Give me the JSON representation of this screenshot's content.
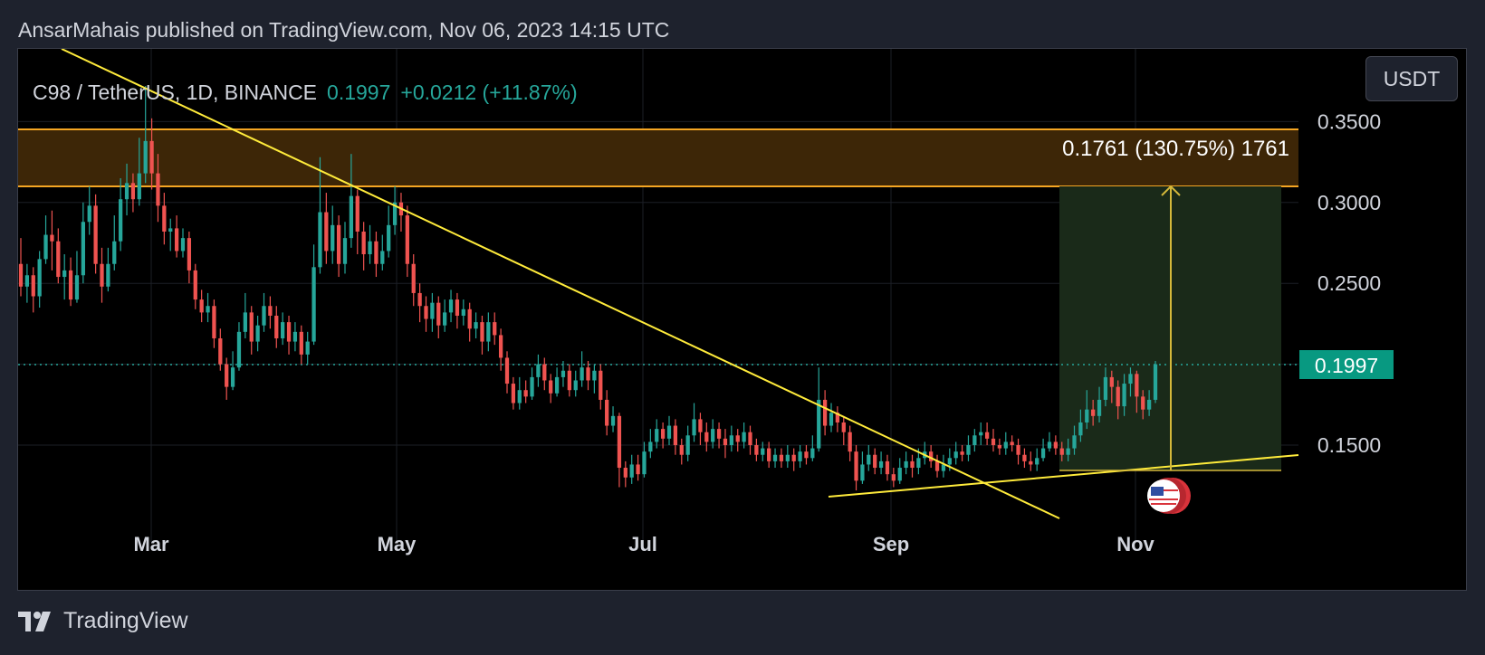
{
  "header": {
    "published_line": "AnsarMahais published on TradingView.com, Nov 06, 2023 14:15 UTC"
  },
  "legend": {
    "symbol": "C98 / TetherUS, 1D, BINANCE",
    "last": "0.1997",
    "change": "+0.0212 (+11.87%)"
  },
  "currency_button": "USDT",
  "footer": {
    "brand": "TradingView"
  },
  "colors": {
    "up": "#26a69a",
    "down": "#ef5350",
    "trendline": "#ffeb3b",
    "zone_fill": "#3d2607",
    "zone_border": "#f5a623",
    "target_fill": "#1a2a19",
    "price_label_bg": "#089981"
  },
  "chart_data": {
    "type": "candlestick",
    "title": "C98 / TetherUS, 1D, BINANCE",
    "x_tick_labels": [
      "Mar",
      "May",
      "Jul",
      "Sep",
      "Nov"
    ],
    "y_tick_labels": [
      "0.3500",
      "0.3000",
      "0.2500",
      "0.1500"
    ],
    "ylim": [
      0.115,
      0.375
    ],
    "current_price": "0.1997",
    "grid": true,
    "candles": [
      [
        0.262,
        0.248,
        0.278,
        0.242
      ],
      [
        0.248,
        0.255,
        0.262,
        0.238
      ],
      [
        0.255,
        0.242,
        0.26,
        0.232
      ],
      [
        0.242,
        0.265,
        0.27,
        0.235
      ],
      [
        0.265,
        0.28,
        0.292,
        0.262
      ],
      [
        0.28,
        0.276,
        0.295,
        0.258
      ],
      [
        0.276,
        0.254,
        0.284,
        0.25
      ],
      [
        0.254,
        0.258,
        0.268,
        0.24
      ],
      [
        0.258,
        0.24,
        0.266,
        0.236
      ],
      [
        0.24,
        0.255,
        0.27,
        0.238
      ],
      [
        0.255,
        0.288,
        0.3,
        0.25
      ],
      [
        0.288,
        0.298,
        0.31,
        0.28
      ],
      [
        0.298,
        0.262,
        0.305,
        0.256
      ],
      [
        0.262,
        0.248,
        0.272,
        0.238
      ],
      [
        0.248,
        0.262,
        0.272,
        0.245
      ],
      [
        0.262,
        0.276,
        0.292,
        0.258
      ],
      [
        0.276,
        0.302,
        0.315,
        0.27
      ],
      [
        0.302,
        0.312,
        0.324,
        0.292
      ],
      [
        0.312,
        0.302,
        0.318,
        0.294
      ],
      [
        0.302,
        0.318,
        0.34,
        0.298
      ],
      [
        0.318,
        0.338,
        0.372,
        0.312
      ],
      [
        0.338,
        0.318,
        0.352,
        0.308
      ],
      [
        0.318,
        0.298,
        0.33,
        0.288
      ],
      [
        0.298,
        0.282,
        0.306,
        0.274
      ],
      [
        0.282,
        0.284,
        0.29,
        0.27
      ],
      [
        0.284,
        0.27,
        0.292,
        0.266
      ],
      [
        0.27,
        0.278,
        0.284,
        0.266
      ],
      [
        0.278,
        0.258,
        0.282,
        0.25
      ],
      [
        0.258,
        0.24,
        0.262,
        0.234
      ],
      [
        0.24,
        0.232,
        0.246,
        0.226
      ],
      [
        0.232,
        0.236,
        0.244,
        0.226
      ],
      [
        0.236,
        0.216,
        0.24,
        0.21
      ],
      [
        0.216,
        0.2,
        0.222,
        0.196
      ],
      [
        0.2,
        0.186,
        0.204,
        0.178
      ],
      [
        0.186,
        0.198,
        0.208,
        0.184
      ],
      [
        0.198,
        0.22,
        0.226,
        0.196
      ],
      [
        0.22,
        0.232,
        0.244,
        0.216
      ],
      [
        0.232,
        0.214,
        0.236,
        0.206
      ],
      [
        0.214,
        0.224,
        0.23,
        0.208
      ],
      [
        0.224,
        0.236,
        0.244,
        0.22
      ],
      [
        0.236,
        0.23,
        0.242,
        0.222
      ],
      [
        0.23,
        0.216,
        0.236,
        0.21
      ],
      [
        0.216,
        0.226,
        0.232,
        0.212
      ],
      [
        0.226,
        0.214,
        0.23,
        0.206
      ],
      [
        0.214,
        0.22,
        0.226,
        0.208
      ],
      [
        0.22,
        0.206,
        0.224,
        0.2
      ],
      [
        0.206,
        0.214,
        0.22,
        0.2
      ],
      [
        0.214,
        0.26,
        0.274,
        0.212
      ],
      [
        0.26,
        0.294,
        0.328,
        0.256
      ],
      [
        0.294,
        0.27,
        0.306,
        0.262
      ],
      [
        0.27,
        0.286,
        0.298,
        0.262
      ],
      [
        0.286,
        0.262,
        0.292,
        0.254
      ],
      [
        0.262,
        0.278,
        0.288,
        0.256
      ],
      [
        0.278,
        0.304,
        0.33,
        0.272
      ],
      [
        0.304,
        0.282,
        0.308,
        0.268
      ],
      [
        0.282,
        0.268,
        0.288,
        0.258
      ],
      [
        0.268,
        0.276,
        0.286,
        0.262
      ],
      [
        0.276,
        0.262,
        0.282,
        0.254
      ],
      [
        0.262,
        0.27,
        0.28,
        0.258
      ],
      [
        0.27,
        0.286,
        0.298,
        0.266
      ],
      [
        0.286,
        0.3,
        0.31,
        0.28
      ],
      [
        0.3,
        0.292,
        0.306,
        0.282
      ],
      [
        0.292,
        0.262,
        0.298,
        0.254
      ],
      [
        0.262,
        0.244,
        0.268,
        0.236
      ],
      [
        0.244,
        0.236,
        0.25,
        0.226
      ],
      [
        0.236,
        0.228,
        0.242,
        0.22
      ],
      [
        0.228,
        0.238,
        0.244,
        0.22
      ],
      [
        0.238,
        0.224,
        0.242,
        0.216
      ],
      [
        0.224,
        0.232,
        0.24,
        0.22
      ],
      [
        0.232,
        0.24,
        0.246,
        0.226
      ],
      [
        0.24,
        0.23,
        0.244,
        0.222
      ],
      [
        0.23,
        0.234,
        0.24,
        0.224
      ],
      [
        0.234,
        0.222,
        0.238,
        0.214
      ],
      [
        0.222,
        0.226,
        0.232,
        0.216
      ],
      [
        0.226,
        0.214,
        0.23,
        0.206
      ],
      [
        0.214,
        0.226,
        0.232,
        0.208
      ],
      [
        0.226,
        0.218,
        0.232,
        0.212
      ],
      [
        0.218,
        0.204,
        0.222,
        0.196
      ],
      [
        0.204,
        0.188,
        0.208,
        0.182
      ],
      [
        0.188,
        0.176,
        0.192,
        0.172
      ],
      [
        0.176,
        0.184,
        0.192,
        0.172
      ],
      [
        0.184,
        0.18,
        0.19,
        0.176
      ],
      [
        0.18,
        0.192,
        0.198,
        0.178
      ],
      [
        0.192,
        0.2,
        0.206,
        0.186
      ],
      [
        0.2,
        0.19,
        0.204,
        0.184
      ],
      [
        0.19,
        0.182,
        0.194,
        0.176
      ],
      [
        0.182,
        0.192,
        0.198,
        0.18
      ],
      [
        0.192,
        0.196,
        0.202,
        0.186
      ],
      [
        0.196,
        0.184,
        0.2,
        0.18
      ],
      [
        0.184,
        0.19,
        0.196,
        0.18
      ],
      [
        0.19,
        0.198,
        0.208,
        0.186
      ],
      [
        0.198,
        0.19,
        0.202,
        0.184
      ],
      [
        0.19,
        0.196,
        0.2,
        0.182
      ],
      [
        0.196,
        0.178,
        0.2,
        0.172
      ],
      [
        0.178,
        0.162,
        0.184,
        0.156
      ],
      [
        0.162,
        0.168,
        0.174,
        0.158
      ],
      [
        0.168,
        0.136,
        0.17,
        0.124
      ],
      [
        0.136,
        0.13,
        0.14,
        0.124
      ],
      [
        0.13,
        0.138,
        0.144,
        0.126
      ],
      [
        0.138,
        0.132,
        0.144,
        0.128
      ],
      [
        0.132,
        0.146,
        0.152,
        0.13
      ],
      [
        0.146,
        0.152,
        0.16,
        0.142
      ],
      [
        0.152,
        0.16,
        0.166,
        0.148
      ],
      [
        0.16,
        0.154,
        0.164,
        0.148
      ],
      [
        0.154,
        0.162,
        0.168,
        0.15
      ],
      [
        0.162,
        0.15,
        0.166,
        0.144
      ],
      [
        0.15,
        0.144,
        0.154,
        0.138
      ],
      [
        0.144,
        0.156,
        0.162,
        0.14
      ],
      [
        0.156,
        0.166,
        0.176,
        0.152
      ],
      [
        0.166,
        0.158,
        0.17,
        0.15
      ],
      [
        0.158,
        0.152,
        0.164,
        0.146
      ],
      [
        0.152,
        0.16,
        0.166,
        0.148
      ],
      [
        0.16,
        0.154,
        0.164,
        0.148
      ],
      [
        0.154,
        0.15,
        0.16,
        0.142
      ],
      [
        0.15,
        0.156,
        0.162,
        0.146
      ],
      [
        0.156,
        0.152,
        0.16,
        0.146
      ],
      [
        0.152,
        0.158,
        0.164,
        0.148
      ],
      [
        0.158,
        0.15,
        0.162,
        0.144
      ],
      [
        0.15,
        0.144,
        0.154,
        0.14
      ],
      [
        0.144,
        0.148,
        0.152,
        0.14
      ],
      [
        0.148,
        0.14,
        0.152,
        0.136
      ],
      [
        0.14,
        0.144,
        0.148,
        0.136
      ],
      [
        0.144,
        0.14,
        0.148,
        0.136
      ],
      [
        0.14,
        0.144,
        0.15,
        0.136
      ],
      [
        0.144,
        0.14,
        0.148,
        0.134
      ],
      [
        0.14,
        0.146,
        0.15,
        0.136
      ],
      [
        0.146,
        0.142,
        0.15,
        0.138
      ],
      [
        0.142,
        0.148,
        0.156,
        0.14
      ],
      [
        0.148,
        0.178,
        0.198,
        0.146
      ],
      [
        0.178,
        0.162,
        0.184,
        0.156
      ],
      [
        0.162,
        0.17,
        0.176,
        0.158
      ],
      [
        0.17,
        0.164,
        0.174,
        0.158
      ],
      [
        0.164,
        0.158,
        0.168,
        0.15
      ],
      [
        0.158,
        0.146,
        0.162,
        0.14
      ],
      [
        0.146,
        0.128,
        0.15,
        0.122
      ],
      [
        0.128,
        0.138,
        0.146,
        0.126
      ],
      [
        0.138,
        0.144,
        0.15,
        0.134
      ],
      [
        0.144,
        0.136,
        0.148,
        0.132
      ],
      [
        0.136,
        0.14,
        0.146,
        0.132
      ],
      [
        0.14,
        0.132,
        0.144,
        0.128
      ],
      [
        0.132,
        0.128,
        0.136,
        0.124
      ],
      [
        0.128,
        0.136,
        0.142,
        0.126
      ],
      [
        0.136,
        0.14,
        0.146,
        0.132
      ],
      [
        0.14,
        0.136,
        0.144,
        0.13
      ],
      [
        0.136,
        0.142,
        0.148,
        0.132
      ],
      [
        0.142,
        0.146,
        0.152,
        0.138
      ],
      [
        0.146,
        0.14,
        0.15,
        0.136
      ],
      [
        0.14,
        0.134,
        0.144,
        0.13
      ],
      [
        0.134,
        0.138,
        0.144,
        0.13
      ],
      [
        0.138,
        0.142,
        0.148,
        0.134
      ],
      [
        0.142,
        0.146,
        0.152,
        0.138
      ],
      [
        0.146,
        0.144,
        0.15,
        0.14
      ],
      [
        0.144,
        0.15,
        0.156,
        0.14
      ],
      [
        0.15,
        0.156,
        0.16,
        0.146
      ],
      [
        0.156,
        0.158,
        0.164,
        0.15
      ],
      [
        0.158,
        0.154,
        0.164,
        0.15
      ],
      [
        0.154,
        0.15,
        0.16,
        0.146
      ],
      [
        0.15,
        0.148,
        0.154,
        0.144
      ],
      [
        0.148,
        0.152,
        0.158,
        0.144
      ],
      [
        0.152,
        0.15,
        0.156,
        0.146
      ],
      [
        0.15,
        0.144,
        0.154,
        0.138
      ],
      [
        0.144,
        0.14,
        0.148,
        0.136
      ],
      [
        0.14,
        0.138,
        0.146,
        0.134
      ],
      [
        0.138,
        0.142,
        0.148,
        0.134
      ],
      [
        0.142,
        0.148,
        0.154,
        0.14
      ],
      [
        0.148,
        0.152,
        0.158,
        0.146
      ],
      [
        0.152,
        0.148,
        0.156,
        0.144
      ],
      [
        0.148,
        0.144,
        0.152,
        0.14
      ],
      [
        0.144,
        0.148,
        0.154,
        0.14
      ],
      [
        0.148,
        0.156,
        0.162,
        0.144
      ],
      [
        0.156,
        0.164,
        0.172,
        0.152
      ],
      [
        0.164,
        0.172,
        0.184,
        0.16
      ],
      [
        0.172,
        0.168,
        0.178,
        0.162
      ],
      [
        0.168,
        0.178,
        0.186,
        0.164
      ],
      [
        0.178,
        0.192,
        0.198,
        0.174
      ],
      [
        0.192,
        0.186,
        0.196,
        0.176
      ],
      [
        0.186,
        0.174,
        0.19,
        0.166
      ],
      [
        0.174,
        0.188,
        0.194,
        0.168
      ],
      [
        0.188,
        0.194,
        0.198,
        0.18
      ],
      [
        0.194,
        0.18,
        0.196,
        0.17
      ],
      [
        0.18,
        0.172,
        0.184,
        0.166
      ],
      [
        0.172,
        0.178,
        0.184,
        0.168
      ],
      [
        0.178,
        0.2,
        0.202,
        0.176
      ]
    ]
  }
}
